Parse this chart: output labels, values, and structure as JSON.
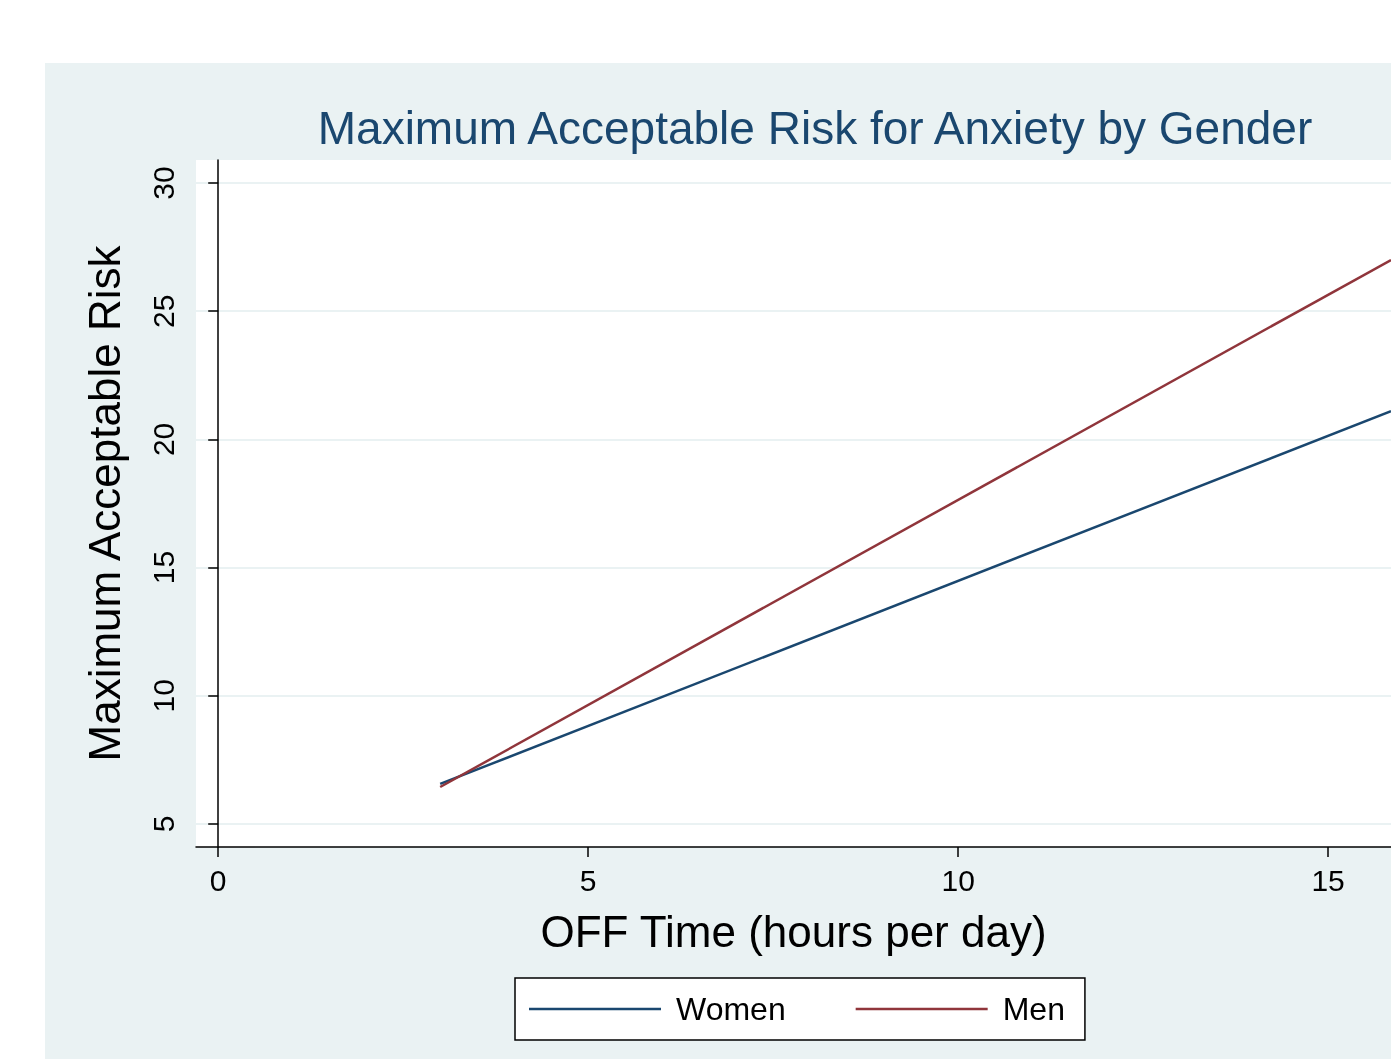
{
  "chart_data": {
    "type": "line",
    "title": "Maximum Acceptable Risk for Anxiety by Gender",
    "xlabel": "OFF Time (hours per day)",
    "ylabel": "Maximum Acceptable Risk",
    "series": [
      {
        "name": "Women",
        "color": "#1a476f",
        "values": [
          6.56,
          21.1
        ]
      },
      {
        "name": "Men",
        "color": "#90353b",
        "values": [
          6.44,
          27.0
        ]
      }
    ],
    "x": [
      3,
      15.85
    ],
    "xlim": [
      -0.3,
      15.85
    ],
    "xticks": [
      0,
      5,
      10,
      15
    ],
    "ylim": [
      4.1,
      30.9
    ],
    "yticks": [
      5,
      10,
      15,
      20,
      25,
      30
    ],
    "grid": "y",
    "legend": "bottom",
    "marker": "none",
    "line_style": "solid"
  }
}
